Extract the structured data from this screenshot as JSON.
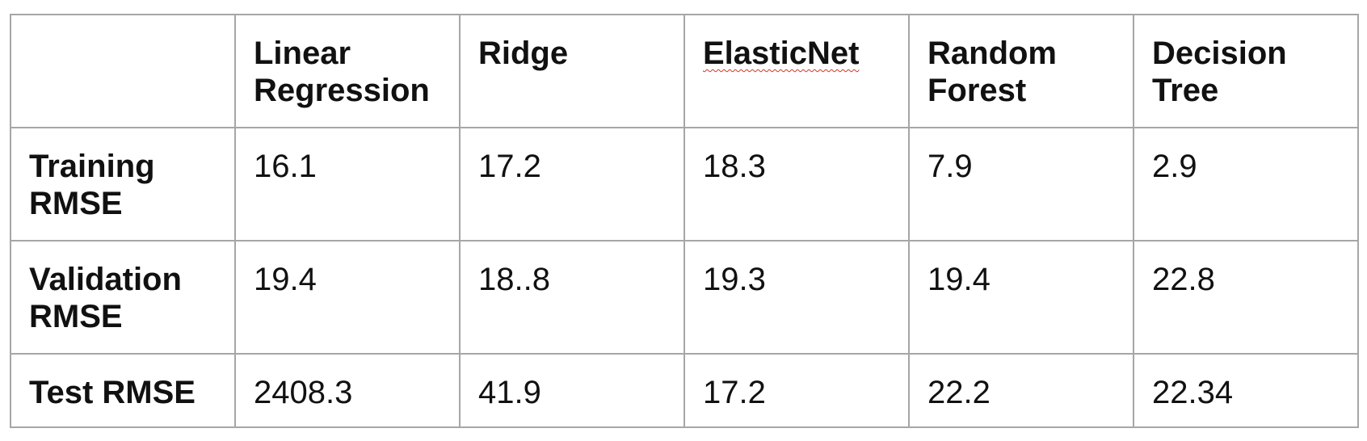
{
  "table": {
    "header": [
      "",
      "Linear Regression",
      "Ridge",
      "ElasticNet",
      "Random Forest",
      "Decision Tree"
    ],
    "rows": [
      {
        "label": "Training RMSE",
        "cells": [
          "16.1",
          "17.2",
          "18.3",
          "7.9",
          "2.9"
        ]
      },
      {
        "label": "Validation RMSE",
        "cells": [
          "19.4",
          "18..8",
          "19.3",
          "19.4",
          "22.8"
        ]
      },
      {
        "label": "Test RMSE",
        "cells": [
          "2408.3",
          "41.9",
          "17.2",
          "22.2",
          "22.34"
        ]
      }
    ]
  },
  "colors": {
    "border": "#a6a6a6",
    "text": "#111111",
    "spellcheck_underline": "#d93025"
  }
}
